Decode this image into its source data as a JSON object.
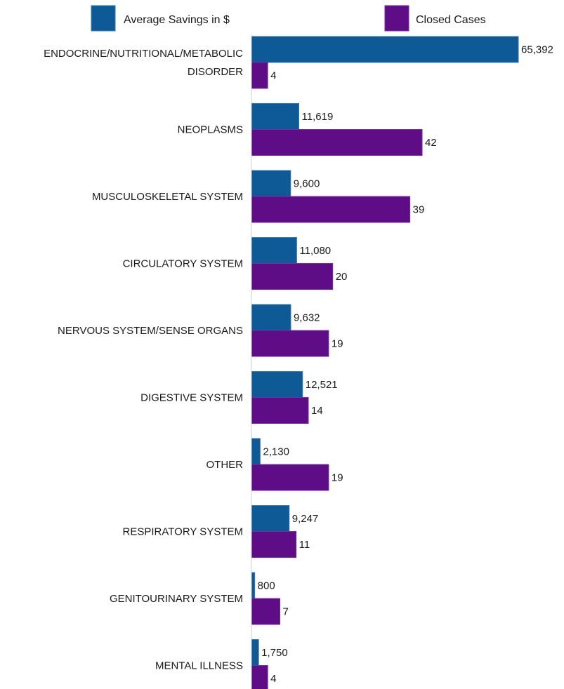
{
  "chart_data": {
    "type": "bar",
    "orientation": "horizontal",
    "legend": {
      "placement": "top"
    },
    "grid": false,
    "categories": [
      [
        "ENDOCRINE/NUTRITIONAL/METABOLIC",
        "DISORDER"
      ],
      [
        "NEOPLASMS"
      ],
      [
        "MUSCULOSKELETAL SYSTEM"
      ],
      [
        "CIRCULATORY SYSTEM"
      ],
      [
        "NERVOUS SYSTEM/SENSE ORGANS"
      ],
      [
        "DIGESTIVE SYSTEM"
      ],
      [
        "OTHER"
      ],
      [
        "RESPIRATORY SYSTEM"
      ],
      [
        "GENITOURINARY SYSTEM"
      ],
      [
        "MENTAL ILLNESS"
      ]
    ],
    "series": [
      {
        "name": "Average Savings in $",
        "color": "#0d5a96",
        "border": "#2f7ab8",
        "values": [
          65392,
          11619,
          9600,
          11080,
          9632,
          12521,
          2130,
          9247,
          800,
          1750
        ],
        "labels": [
          "65,392",
          "11,619",
          "9,600",
          "11,080",
          "9,632",
          "12,521",
          "2,130",
          "9,247",
          "800",
          "1,750"
        ],
        "xlim": [
          0,
          65392
        ]
      },
      {
        "name": "Closed Cases",
        "color": "#5e0d86",
        "border": "#7a2aa3",
        "values": [
          4,
          42,
          39,
          20,
          19,
          14,
          19,
          11,
          7,
          4
        ],
        "labels": [
          "4",
          "42",
          "39",
          "20",
          "19",
          "14",
          "19",
          "11",
          "7",
          "4"
        ],
        "xlim": [
          0,
          42
        ]
      }
    ]
  }
}
